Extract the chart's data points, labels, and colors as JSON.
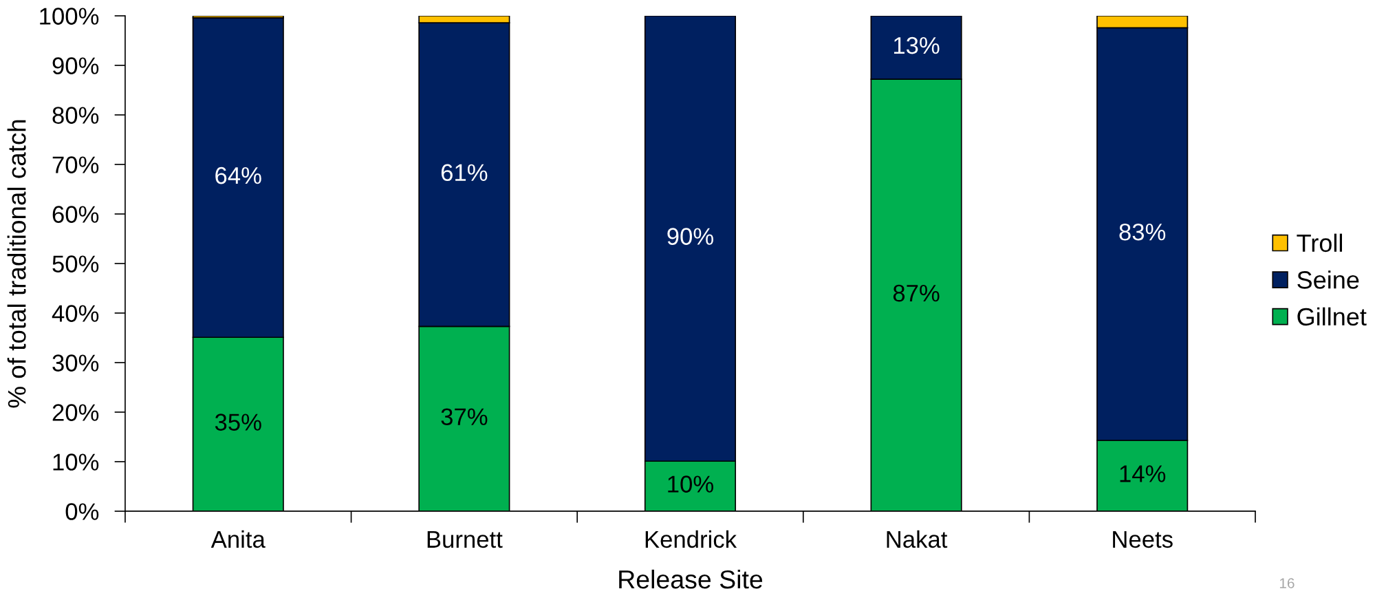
{
  "chart_data": {
    "type": "bar",
    "stacked": true,
    "xlabel": "Release Site",
    "ylabel": "% of total traditional catch",
    "categories": [
      "Anita",
      "Burnett",
      "Kendrick",
      "Nakat",
      "Neets"
    ],
    "series": [
      {
        "name": "Gillnet",
        "color": "#00b050",
        "values": [
          35.1,
          37.3,
          10.1,
          87.2,
          14.3
        ],
        "value_labels": [
          "35%",
          "37%",
          "10%",
          "87%",
          "14%"
        ]
      },
      {
        "name": "Seine",
        "color": "#002060",
        "values": [
          64.5,
          61.3,
          89.9,
          12.8,
          83.3
        ],
        "value_labels": [
          "64%",
          "61%",
          "90%",
          "13%",
          "83%"
        ]
      },
      {
        "name": "Troll",
        "color": "#ffc000",
        "values": [
          0.4,
          1.4,
          0,
          0,
          2.4
        ]
      }
    ],
    "ylim": [
      0,
      100
    ],
    "yticks": [
      {
        "value": 0,
        "label": "0%"
      },
      {
        "value": 10,
        "label": "10%"
      },
      {
        "value": 20,
        "label": "20%"
      },
      {
        "value": 30,
        "label": "30%"
      },
      {
        "value": 40,
        "label": "40%"
      },
      {
        "value": 50,
        "label": "50%"
      },
      {
        "value": 60,
        "label": "60%"
      },
      {
        "value": 70,
        "label": "70%"
      },
      {
        "value": 80,
        "label": "80%"
      },
      {
        "value": 90,
        "label": "90%"
      },
      {
        "value": 100,
        "label": "100%"
      }
    ],
    "grid": false,
    "legend": "right",
    "annotations": [
      "16"
    ]
  }
}
